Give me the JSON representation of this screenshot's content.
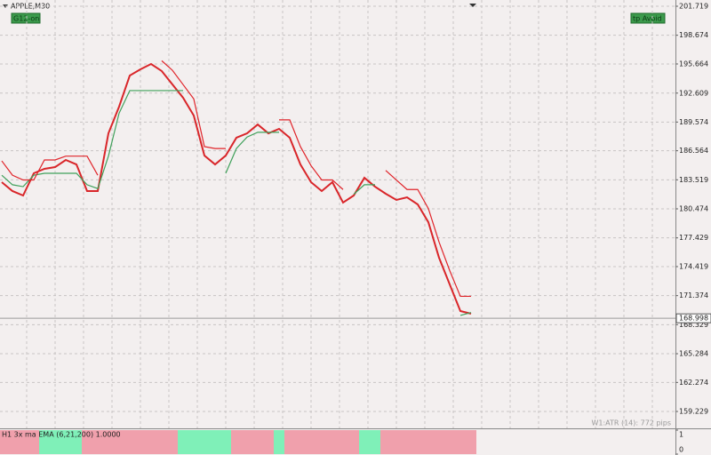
{
  "chart_data": {
    "type": "line",
    "title": "APPLE,M30",
    "badges": [
      "G12-on",
      "tp Avoid"
    ],
    "footnote": "W1:ATR (14): 772 pips",
    "current_price": 168.998,
    "ylim": [
      157.46,
      202.37
    ],
    "yticks": [
      201.719,
      198.674,
      195.664,
      192.609,
      189.574,
      186.564,
      183.519,
      180.474,
      177.429,
      174.419,
      171.374,
      168.329,
      165.284,
      162.274,
      159.229
    ],
    "grid": true,
    "categories": [
      null,
      null,
      null,
      null,
      null,
      null,
      null,
      null,
      null,
      null,
      null,
      null,
      null,
      null,
      null,
      null,
      null,
      null,
      null,
      null,
      null,
      null,
      null,
      null,
      null,
      null,
      null,
      null,
      null,
      null,
      null,
      null,
      null,
      null,
      null,
      null,
      null,
      null,
      null,
      null,
      null,
      null,
      null,
      null,
      null
    ],
    "series": [
      {
        "color": "#d9262a",
        "values": [
          183.27,
          182.34,
          181.87,
          184.2,
          184.67,
          184.85,
          185.6,
          185.13,
          182.34,
          182.34,
          188.39,
          191.19,
          194.45,
          195.1,
          195.66,
          194.92,
          193.52,
          192.12,
          190.26,
          186.06,
          185.13,
          186.06,
          187.93,
          188.39,
          189.32,
          188.39,
          188.86,
          187.93,
          185.13,
          183.27,
          182.34,
          183.27,
          181.13,
          181.87,
          183.73,
          182.8,
          182.06,
          181.41,
          181.68,
          180.94,
          179.07,
          175.35,
          172.55,
          169.76,
          169.48
        ]
      },
      {
        "color": "#3fa05a",
        "values": [
          184.0,
          183.0,
          182.8,
          184.0,
          184.2,
          184.2,
          184.2,
          184.2,
          183.0,
          182.6,
          186.0,
          190.5,
          192.87,
          192.87,
          192.87,
          192.87,
          192.87,
          192.87,
          null,
          null,
          null,
          184.2,
          186.8,
          188.0,
          188.5,
          188.5,
          188.5,
          null,
          null,
          null,
          null,
          null,
          null,
          182.0,
          183.0,
          183.0,
          null,
          null,
          null,
          null,
          null,
          null,
          null,
          169.3,
          169.6
        ]
      },
      {
        "color": "#e0242a",
        "values": [
          185.5,
          184.0,
          183.5,
          183.5,
          185.6,
          185.6,
          186.0,
          186.0,
          186.0,
          184.0,
          null,
          null,
          null,
          null,
          null,
          196.0,
          195.0,
          193.5,
          192.0,
          187.0,
          186.8,
          186.8,
          null,
          null,
          null,
          null,
          189.8,
          189.8,
          187.0,
          185.0,
          183.5,
          183.5,
          182.5,
          null,
          null,
          null,
          184.5,
          183.5,
          182.5,
          182.5,
          180.5,
          177.0,
          174.0,
          171.3,
          171.3
        ]
      }
    ],
    "indicator": {
      "label": "H1 3x ma EMA (6,21,200) 1.0000",
      "ylim": [
        0,
        1
      ],
      "yticks": [
        1,
        0
      ],
      "values": [
        1,
        1,
        1,
        1,
        1,
        1,
        1,
        1,
        1,
        1,
        1,
        1,
        1,
        1,
        1,
        1,
        1,
        1,
        1,
        1,
        1,
        1,
        1,
        1,
        1,
        1,
        1,
        1,
        1,
        1,
        1,
        1,
        1,
        1,
        1,
        1,
        1,
        1,
        1,
        1,
        1,
        1,
        1,
        1,
        1
      ],
      "colors": [
        "#f0a0ac",
        "#f0a0ac",
        "#f0a0ac",
        "#f0a0ac",
        "#7ff0b8",
        "#7ff0b8",
        "#7ff0b8",
        "#7ff0b8",
        "#f0a0ac",
        "#f0a0ac",
        "#f0a0ac",
        "#f0a0ac",
        "#f0a0ac",
        "#f0a0ac",
        "#f0a0ac",
        "#f0a0ac",
        "#f0a0ac",
        "#7ff0b8",
        "#7ff0b8",
        "#7ff0b8",
        "#7ff0b8",
        "#7ff0b8",
        "#f0a0ac",
        "#f0a0ac",
        "#f0a0ac",
        "#f0a0ac",
        "#7ff0b8",
        "#f0a0ac",
        "#f0a0ac",
        "#f0a0ac",
        "#f0a0ac",
        "#f0a0ac",
        "#f0a0ac",
        "#f0a0ac",
        "#7ff0b8",
        "#7ff0b8",
        "#f0a0ac",
        "#f0a0ac",
        "#f0a0ac",
        "#f0a0ac",
        "#f0a0ac",
        "#f0a0ac",
        "#f0a0ac",
        "#f0a0ac",
        "#f0a0ac"
      ]
    }
  }
}
